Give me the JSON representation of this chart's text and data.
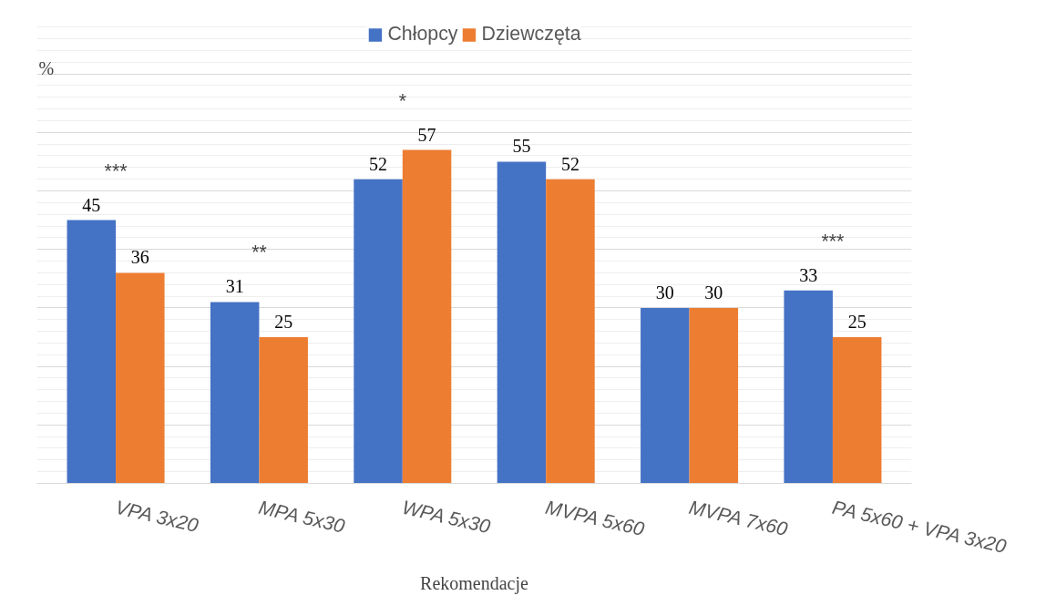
{
  "chart_data": {
    "type": "bar",
    "xlabel": "Rekomendacje",
    "ylabel": "%",
    "categories": [
      "VPA 3x20",
      "MPA 5x30",
      "WPA 5x30",
      "MVPA 5x60",
      "MVPA 7x60",
      "PA 5x60 + VPA 3x20"
    ],
    "series": [
      {
        "name": "Chłopcy",
        "color": "#4472c4",
        "values": [
          45,
          31,
          52,
          55,
          30,
          33
        ]
      },
      {
        "name": "Dziewczęta",
        "color": "#ed7d31",
        "values": [
          36,
          25,
          57,
          52,
          30,
          25
        ]
      }
    ],
    "tick_labels": "x",
    "grid": "y",
    "legend": "top",
    "data_labels": true,
    "annotations": [
      {
        "text": "***",
        "x": "VPA 3x20",
        "y": 45
      },
      {
        "text": "**",
        "x": "MPA 5x30",
        "y": 31
      },
      {
        "text": "*",
        "x": "WPA 5x30",
        "y": 57
      },
      {
        "text": "***",
        "x": "PA 5x60 + VPA 3x20",
        "y": 33
      }
    ]
  }
}
